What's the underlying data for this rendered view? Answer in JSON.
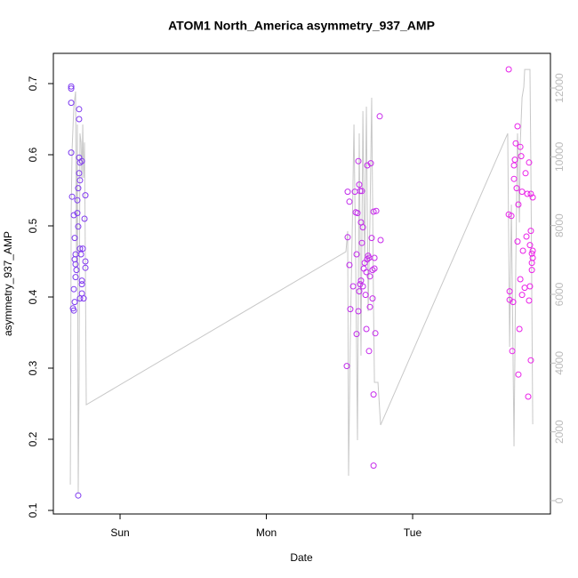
{
  "chart_data": {
    "type": "scatter",
    "title": "ATOM1 North_America asymmetry_937_AMP",
    "x_label": "Date",
    "y_label": "asymmetry_937_AMP",
    "xlim": [
      0.544,
      3.942
    ],
    "xticks": [
      {
        "value": 1,
        "label": "Sun"
      },
      {
        "value": 2,
        "label": "Mon"
      },
      {
        "value": 3,
        "label": "Tue"
      }
    ],
    "ylim": [
      0.095,
      0.7425
    ],
    "yticks": [
      0.1,
      0.2,
      0.3,
      0.4,
      0.5,
      0.6,
      0.7
    ],
    "y2lim": [
      -388,
      13009
    ],
    "y2ticks": [
      0,
      2000,
      4000,
      6000,
      8000,
      10000,
      12000
    ],
    "y2_color": "#bbbbbb",
    "series": [
      {
        "gradient": [
          "#7a3cf0",
          "#f020e8"
        ],
        "x": [
          0.666,
          0.666,
          0.666,
          0.666,
          0.672,
          0.684,
          0.69,
          0.696,
          0.69,
          0.696,
          0.702,
          0.696,
          0.684,
          0.678,
          0.684,
          0.69,
          0.714,
          0.72,
          0.72,
          0.72,
          0.726,
          0.72,
          0.726,
          0.714,
          0.708,
          0.708,
          0.714,
          0.726,
          0.733,
          0.745,
          0.739,
          0.739,
          0.739,
          0.726,
          0.751,
          0.757,
          0.763,
          0.763,
          0.763,
          0.739,
          2.55,
          2.556,
          2.556,
          2.568,
          2.568,
          2.574,
          2.593,
          2.605,
          2.611,
          2.617,
          2.617,
          2.623,
          2.629,
          2.629,
          2.635,
          2.635,
          2.641,
          2.641,
          2.647,
          2.647,
          2.653,
          2.653,
          2.66,
          2.66,
          2.666,
          2.672,
          2.678,
          2.684,
          2.684,
          2.69,
          2.69,
          2.696,
          2.702,
          2.702,
          2.708,
          2.708,
          2.714,
          2.72,
          2.726,
          2.726,
          2.733,
          2.733,
          2.733,
          2.739,
          2.739,
          2.745,
          2.751,
          2.775,
          2.781,
          3.657,
          3.657,
          3.663,
          3.663,
          3.675,
          3.681,
          3.687,
          3.693,
          3.693,
          3.699,
          3.705,
          3.711,
          3.717,
          3.717,
          3.723,
          3.723,
          3.73,
          3.736,
          3.736,
          3.742,
          3.748,
          3.748,
          3.754,
          3.766,
          3.772,
          3.778,
          3.784,
          3.79,
          3.796,
          3.796,
          3.802,
          3.802,
          3.808,
          3.808,
          3.808,
          3.815,
          3.815,
          3.821,
          3.821,
          3.821,
          3.815
        ],
        "values": [
          0.696,
          0.693,
          0.673,
          0.603,
          0.541,
          0.515,
          0.483,
          0.46,
          0.453,
          0.446,
          0.438,
          0.428,
          0.411,
          0.384,
          0.381,
          0.393,
          0.121,
          0.664,
          0.65,
          0.596,
          0.589,
          0.574,
          0.564,
          0.553,
          0.536,
          0.518,
          0.499,
          0.468,
          0.46,
          0.468,
          0.423,
          0.418,
          0.405,
          0.398,
          0.398,
          0.51,
          0.543,
          0.45,
          0.441,
          0.591,
          0.303,
          0.484,
          0.548,
          0.534,
          0.445,
          0.383,
          0.415,
          0.548,
          0.519,
          0.46,
          0.348,
          0.518,
          0.38,
          0.591,
          0.408,
          0.558,
          0.549,
          0.418,
          0.423,
          0.505,
          0.476,
          0.549,
          0.415,
          0.498,
          0.44,
          0.448,
          0.403,
          0.355,
          0.435,
          0.585,
          0.453,
          0.458,
          0.324,
          0.455,
          0.386,
          0.429,
          0.588,
          0.483,
          0.438,
          0.398,
          0.163,
          0.263,
          0.52,
          0.455,
          0.44,
          0.349,
          0.521,
          0.654,
          0.48,
          0.72,
          0.516,
          0.396,
          0.408,
          0.514,
          0.324,
          0.393,
          0.585,
          0.566,
          0.593,
          0.616,
          0.553,
          0.478,
          0.64,
          0.53,
          0.291,
          0.355,
          0.611,
          0.425,
          0.598,
          0.548,
          0.403,
          0.465,
          0.413,
          0.574,
          0.485,
          0.545,
          0.26,
          0.589,
          0.395,
          0.415,
          0.473,
          0.493,
          0.545,
          0.311,
          0.438,
          0.461,
          0.465,
          0.455,
          0.54,
          0.448
        ]
      },
      {
        "axis": "y2",
        "color": "#c8c8c8",
        "x": [
          0.66,
          0.666,
          0.672,
          0.684,
          0.696,
          0.702,
          0.708,
          0.714,
          0.72,
          0.726,
          0.733,
          0.739,
          0.745,
          0.751,
          0.757,
          0.763,
          0.769,
          2.544,
          2.556,
          2.562,
          2.574,
          2.587,
          2.599,
          2.611,
          2.623,
          2.635,
          2.647,
          2.66,
          2.672,
          2.684,
          2.696,
          2.708,
          2.72,
          2.733,
          2.739,
          2.757,
          2.763,
          2.781,
          3.65,
          3.663,
          3.675,
          3.693,
          3.705,
          3.717,
          3.73,
          3.736,
          3.748,
          3.76,
          3.766,
          3.784,
          3.802,
          3.808,
          3.821
        ],
        "values": [
          465,
          8380,
          10190,
          11460,
          11900,
          6800,
          10940,
          207,
          3700,
          10680,
          10420,
          9390,
          10940,
          9390,
          10420,
          6800,
          2790,
          7240,
          7840,
          724,
          4730,
          7840,
          10940,
          6800,
          1760,
          10680,
          4220,
          11330,
          6800,
          11460,
          5510,
          8090,
          11720,
          5510,
          3440,
          3440,
          3440,
          2200,
          10680,
          4470,
          8610,
          1580,
          6800,
          10680,
          8090,
          10420,
          11720,
          12030,
          12540,
          12540,
          12540,
          9900,
          2220
        ]
      }
    ]
  }
}
